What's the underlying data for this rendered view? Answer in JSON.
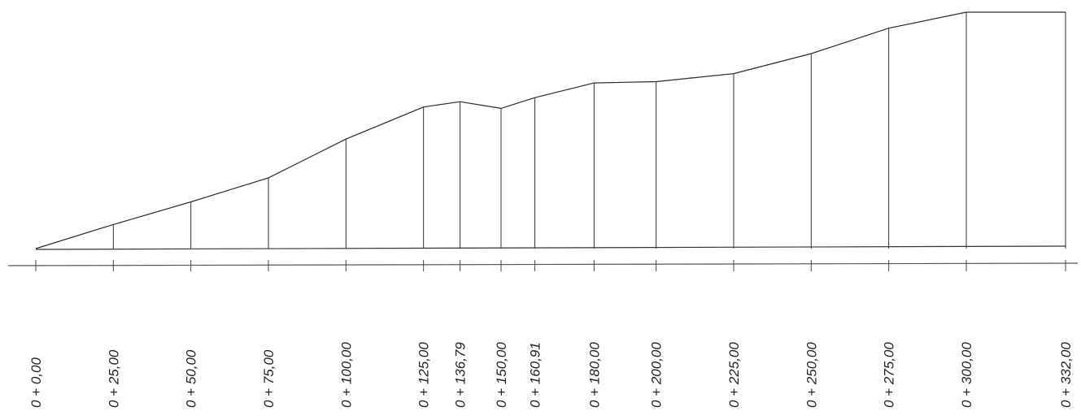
{
  "chart_data": {
    "type": "line",
    "x_unit": "chainage (m)",
    "stations": [
      {
        "label": "0 + 0,00",
        "chainage": 0,
        "elevation": 0.0
      },
      {
        "label": "0 + 25,00",
        "chainage": 25,
        "elevation": 9.0
      },
      {
        "label": "0 + 50,00",
        "chainage": 50,
        "elevation": 17.5
      },
      {
        "label": "0 + 75,00",
        "chainage": 75,
        "elevation": 26.5
      },
      {
        "label": "0 + 100,00",
        "chainage": 100,
        "elevation": 41.0
      },
      {
        "label": "0 + 125,00",
        "chainage": 125,
        "elevation": 53.0
      },
      {
        "label": "0 + 136,79",
        "chainage": 136.79,
        "elevation": 55.0
      },
      {
        "label": "0 + 150,00",
        "chainage": 150,
        "elevation": 52.5
      },
      {
        "label": "0 + 160,91",
        "chainage": 160.91,
        "elevation": 56.5
      },
      {
        "label": "0 + 180,00",
        "chainage": 180,
        "elevation": 62.0
      },
      {
        "label": "0 + 200,00",
        "chainage": 200,
        "elevation": 62.5
      },
      {
        "label": "0 + 225,00",
        "chainage": 225,
        "elevation": 65.5
      },
      {
        "label": "0 + 250,00",
        "chainage": 250,
        "elevation": 73.0
      },
      {
        "label": "0 + 275,00",
        "chainage": 275,
        "elevation": 82.5
      },
      {
        "label": "0 + 300,00",
        "chainage": 300,
        "elevation": 88.5
      },
      {
        "label": "0 + 332,00",
        "chainage": 332,
        "elevation": 88.5
      }
    ],
    "x_range": [
      0,
      332
    ],
    "y_range": [
      0,
      88.5
    ],
    "grid": false
  }
}
